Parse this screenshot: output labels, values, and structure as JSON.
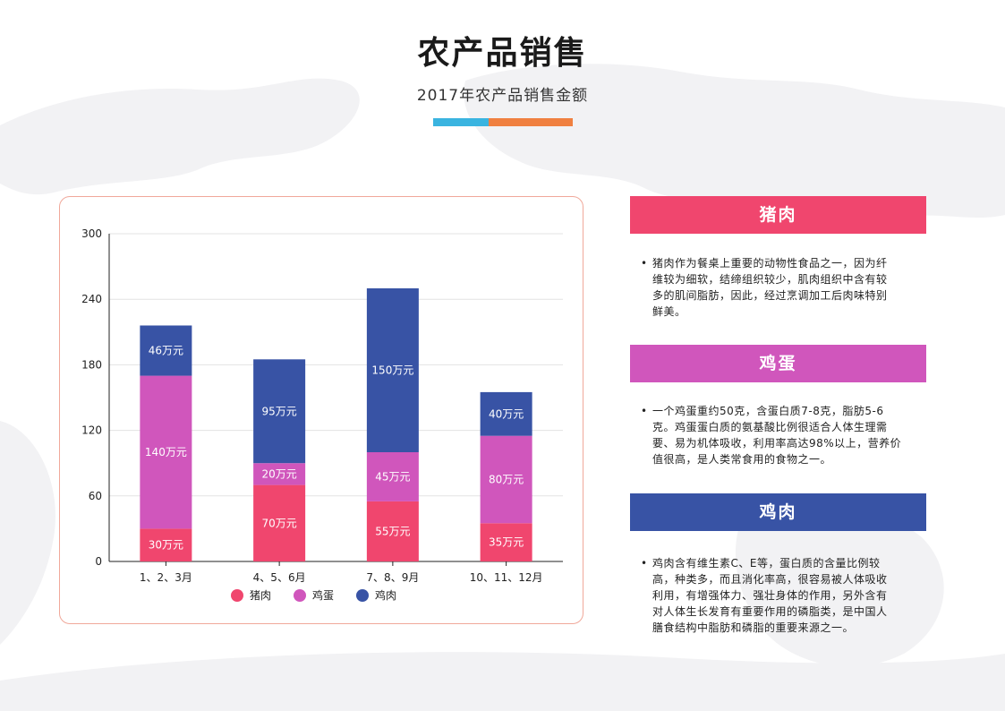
{
  "header": {
    "title": "农产品销售",
    "subtitle": "2017年农产品销售金额"
  },
  "colors": {
    "accent_left": "#3ab4e0",
    "accent_right": "#f08040",
    "pork": "#f0466e",
    "egg": "#d056bc",
    "chicken": "#3853a5",
    "card_border": "#f0a89a"
  },
  "chart_data": {
    "type": "bar",
    "stacked": true,
    "categories": [
      "1、2、3月",
      "4、5、6月",
      "7、8、9月",
      "10、11、12月"
    ],
    "series": [
      {
        "name": "猪肉",
        "values": [
          30,
          70,
          55,
          35
        ],
        "labels": [
          "30万元",
          "70万元",
          "55万元",
          "35万元"
        ],
        "color": "#f0466e"
      },
      {
        "name": "鸡蛋",
        "values": [
          140,
          20,
          45,
          80
        ],
        "labels": [
          "140万元",
          "20万元",
          "45万元",
          "80万元"
        ],
        "color": "#d056bc"
      },
      {
        "name": "鸡肉",
        "values": [
          46,
          95,
          150,
          40
        ],
        "labels": [
          "46万元",
          "95万元",
          "150万元",
          "40万元"
        ],
        "color": "#3853a5"
      }
    ],
    "ylim": [
      0,
      300
    ],
    "yticks": [
      0,
      60,
      120,
      180,
      240,
      300
    ],
    "grid": true,
    "legend": "bottom"
  },
  "info": [
    {
      "title": "猪肉",
      "color": "#f0466e",
      "lines": [
        "猪肉作为餐桌上重要的动物性食品之一，因为纤",
        "维较为细软，结缔组织较少，肌肉组织中含有较",
        "多的肌间脂肪，因此，经过烹调加工后肉味特别",
        "鲜美。"
      ]
    },
    {
      "title": "鸡蛋",
      "color": "#d056bc",
      "lines": [
        "一个鸡蛋重约50克，含蛋白质7-8克，脂肪5-6",
        "克。鸡蛋蛋白质的氨基酸比例很适合人体生理需",
        "要、易为机体吸收，利用率高达98%以上，营养价",
        "值很高，是人类常食用的食物之一。"
      ]
    },
    {
      "title": "鸡肉",
      "color": "#3853a5",
      "lines": [
        "鸡肉含有维生素C、E等，蛋白质的含量比例较",
        "高，种类多，而且消化率高，很容易被人体吸收",
        "利用，有增强体力、强壮身体的作用，另外含有",
        "对人体生长发育有重要作用的磷脂类，是中国人",
        "膳食结构中脂肪和磷脂的重要来源之一。"
      ]
    }
  ]
}
